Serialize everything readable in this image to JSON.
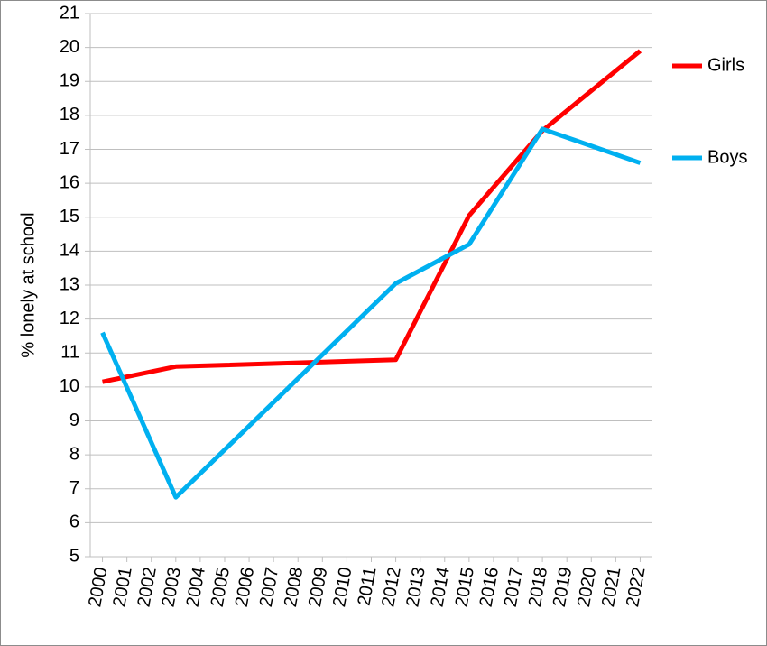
{
  "chart_data": {
    "type": "line",
    "y_label": "% lonely at school",
    "x": [
      2000,
      2003,
      2012,
      2015,
      2018,
      2022
    ],
    "series": [
      {
        "name": "Girls",
        "color": "#ff0000",
        "values": [
          10.15,
          10.6,
          10.8,
          15.05,
          17.55,
          19.9
        ]
      },
      {
        "name": "Boys",
        "color": "#00b0f0",
        "values": [
          11.6,
          6.75,
          13.05,
          14.2,
          17.6,
          16.6
        ]
      }
    ],
    "xlim": [
      1999.5,
      2022.5
    ],
    "xticks": [
      2000,
      2001,
      2002,
      2003,
      2004,
      2005,
      2006,
      2007,
      2008,
      2009,
      2010,
      2011,
      2012,
      2013,
      2014,
      2015,
      2016,
      2017,
      2018,
      2019,
      2020,
      2021,
      2022
    ],
    "ylim": [
      5,
      21
    ],
    "yticks": [
      5,
      6,
      7,
      8,
      9,
      10,
      11,
      12,
      13,
      14,
      15,
      16,
      17,
      18,
      19,
      20,
      21
    ],
    "grid": true,
    "legend": "right"
  }
}
